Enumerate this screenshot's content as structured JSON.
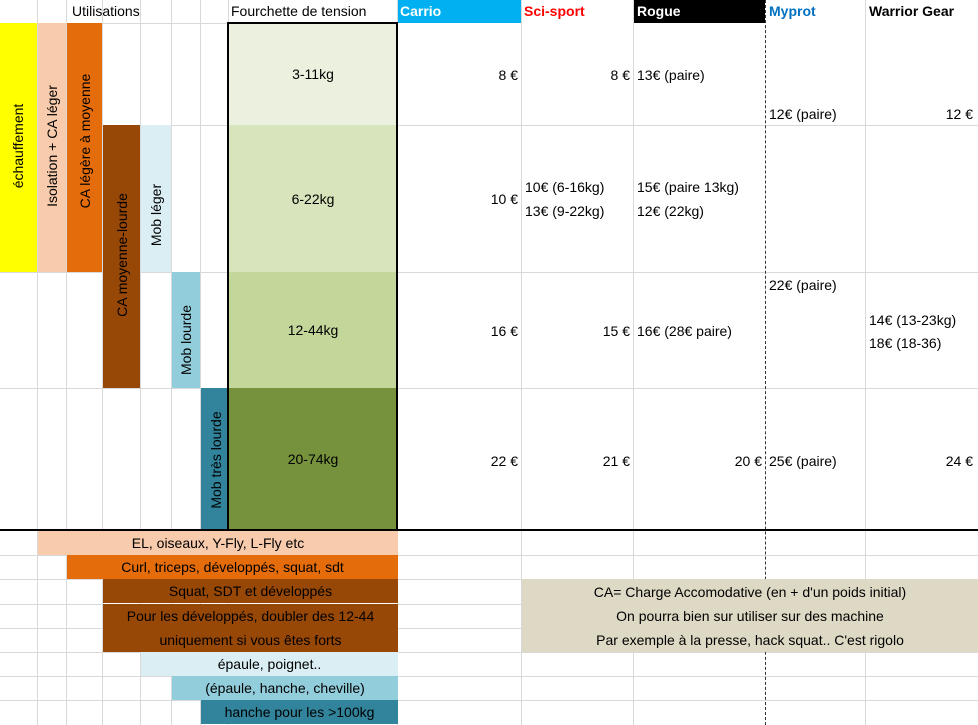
{
  "header": {
    "utilisations": "Utilisations",
    "fourchette": "Fourchette de tension",
    "brands": [
      {
        "name": "Carrio",
        "bg": "#00b0f0",
        "color": "#ffffff"
      },
      {
        "name": "Sci-sport",
        "bg": "#ffffff",
        "color": "#ff0000"
      },
      {
        "name": "Rogue",
        "bg": "#000000",
        "color": "#ffffff"
      },
      {
        "name": "Myprot",
        "bg": "#ffffff",
        "color": "#0070c0"
      },
      {
        "name": "Warrior Gear",
        "bg": "#ffffff",
        "color": "#000000"
      }
    ]
  },
  "uses": [
    {
      "label": "échauffement",
      "color": "#ffff00"
    },
    {
      "label": "Isolation + CA léger",
      "color": "#f8cbad"
    },
    {
      "label": "CA légère à moyenne",
      "color": "#e46c0a"
    },
    {
      "label": "CA moyenne-lourde",
      "color": "#974706"
    },
    {
      "label": "Mob léger",
      "color": "#daeef3"
    },
    {
      "label": "Mob lourde",
      "color": "#92cddc"
    },
    {
      "label": "Mob très lourde",
      "color": "#31849b"
    }
  ],
  "ranges": [
    {
      "label": "3-11kg",
      "color": "#ebf1de"
    },
    {
      "label": "6-22kg",
      "color": "#d8e4bc"
    },
    {
      "label": "12-44kg",
      "color": "#c4d79b"
    },
    {
      "label": "20-74kg",
      "color": "#76923c"
    }
  ],
  "prices": {
    "carrio": [
      "8 €",
      "10 €",
      "16 €",
      "22 €"
    ],
    "scisport": [
      "8 €",
      "10€ (6-16kg)",
      "13€ (9-22kg)",
      "15 €",
      "21 €"
    ],
    "rogue": [
      "13€ (paire)",
      "15€ (paire 13kg)",
      "12€ (22kg)",
      "16€ (28€ paire)",
      "20 €"
    ],
    "myprot": [
      "12€ (paire)",
      "22€ (paire)",
      "25€ (paire)"
    ],
    "warrior": [
      "12 €",
      "14€ (13-23kg)",
      "18€ (18-36)",
      "24 €"
    ]
  },
  "usage_notes": [
    "EL, oiseaux, Y-Fly, L-Fly etc",
    "Curl, triceps, développés, squat, sdt",
    "Squat, SDT et développés",
    "Pour les développés, doubler des 12-44",
    "uniquement si vous êtes forts",
    "épaule, poignet..",
    "(épaule, hanche, cheville)",
    "hanche pour les >100kg"
  ],
  "ca_note": [
    "CA= Charge Accomodative (en + d'un poids initial)",
    "On pourra bien sur utiliser sur des machine",
    "Par exemple à la presse, hack squat.. C'est rigolo"
  ],
  "colors": {
    "ca_note_bg": "#ddd9c4",
    "grid": "#d9d9d9"
  }
}
